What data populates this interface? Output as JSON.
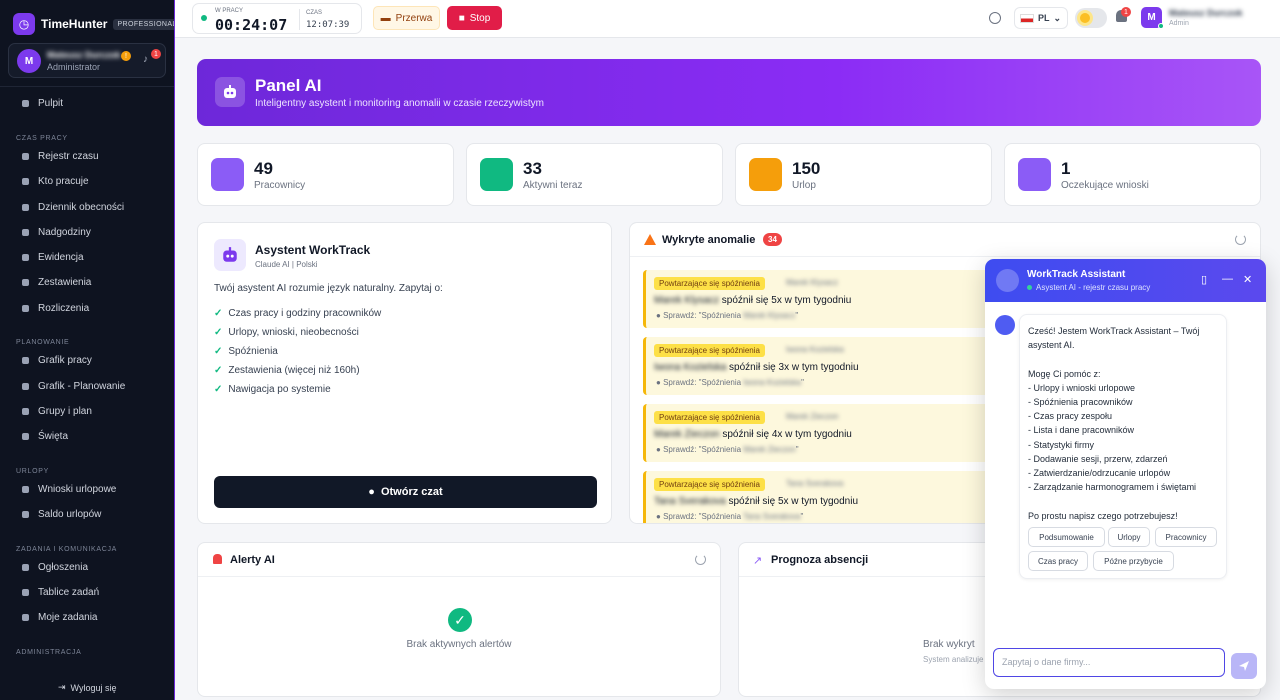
{
  "brand": {
    "name": "TimeHunter",
    "badge": "PROFESSIONAL"
  },
  "user": {
    "initial": "M",
    "name": "Mateusz Durczok",
    "role": "Administrator",
    "notif": "!",
    "bell_count": "1"
  },
  "sidebar": {
    "items": [
      {
        "label": "Pulpit",
        "icon": "dashboard-icon"
      },
      {
        "section": "CZAS PRACY"
      },
      {
        "label": "Rejestr czasu",
        "icon": "clock-icon"
      },
      {
        "label": "Kto pracuje",
        "icon": "users-icon"
      },
      {
        "label": "Dziennik obecności",
        "icon": "notebook-icon"
      },
      {
        "label": "Nadgodziny",
        "icon": "history-icon"
      },
      {
        "label": "Ewidencja",
        "icon": "list-icon"
      },
      {
        "label": "Zestawienia",
        "icon": "chart-icon"
      },
      {
        "label": "Rozliczenia",
        "icon": "invoice-icon"
      },
      {
        "section": "PLANOWANIE"
      },
      {
        "label": "Grafik pracy",
        "icon": "calendar-icon"
      },
      {
        "label": "Grafik - Planowanie",
        "icon": "calendar-plus-icon"
      },
      {
        "label": "Grupy i plan",
        "icon": "group-icon"
      },
      {
        "label": "Święta",
        "icon": "star-icon"
      },
      {
        "section": "URLOPY"
      },
      {
        "label": "Wnioski urlopowe",
        "icon": "document-icon"
      },
      {
        "label": "Saldo urlopów",
        "icon": "wallet-icon"
      },
      {
        "section": "ZADANIA I KOMUNIKACJA"
      },
      {
        "label": "Ogłoszenia",
        "icon": "megaphone-icon"
      },
      {
        "label": "Tablice zadań",
        "icon": "board-icon"
      },
      {
        "label": "Moje zadania",
        "icon": "task-icon"
      },
      {
        "section": "ADMINISTRACJA"
      }
    ],
    "logout": "Wyloguj się"
  },
  "topbar": {
    "status_label": "W PRACY",
    "work_time": "00:24:07",
    "clock_label": "CZAS",
    "clock": "12:07:39",
    "break_label": "Przerwa",
    "stop_label": "Stop",
    "lang": "PL",
    "bell_count": "1",
    "user_initial": "M",
    "user_name": "Mateusz Durczok",
    "user_role": "Admin"
  },
  "hero": {
    "title": "Panel AI",
    "subtitle": "Inteligentny asystent i monitoring anomalii w czasie rzeczywistym"
  },
  "stats": [
    {
      "value": "49",
      "label": "Pracownicy",
      "color": "#8b5cf6",
      "icon": "users-icon"
    },
    {
      "value": "33",
      "label": "Aktywni teraz",
      "color": "#10b981",
      "icon": "play-icon"
    },
    {
      "value": "150",
      "label": "Urlop",
      "color": "#f59e0b",
      "icon": "beach-icon"
    },
    {
      "value": "1",
      "label": "Oczekujące wnioski",
      "color": "#8b5cf6",
      "icon": "clock-icon"
    }
  ],
  "assistant": {
    "title": "Asystent WorkTrack",
    "subtitle": "Claude AI | Polski",
    "desc": "Twój asystent AI rozumie język naturalny. Zapytaj o:",
    "items": [
      "Czas pracy i godziny pracowników",
      "Urlopy, wnioski, nieobecności",
      "Spóźnienia",
      "Zestawienia (więcej niż 160h)",
      "Nawigacja po systemie"
    ],
    "button": "Otwórz czat"
  },
  "anomalies": {
    "title": "Wykryte anomalie",
    "count": "34",
    "items": [
      {
        "tag": "Powtarzające się spóźnienia",
        "person": "Marek Klysacz",
        "name": "Marek Klysacz",
        "text": "spóźnił się 5x w tym tygodniu",
        "check": "Sprawdź: \"Spóźnienia",
        "check_name": "Marek Klysacz",
        "check_end": "\""
      },
      {
        "tag": "Powtarzające się spóźnienia",
        "person": "Iwona Kozielska",
        "name": "Iwona Kozielska",
        "text": "spóźnił się 3x w tym tygodniu",
        "check": "Sprawdź: \"Spóźnienia",
        "check_name": "Iwona Kozielska",
        "check_end": "\""
      },
      {
        "tag": "Powtarzające się spóźnienia",
        "person": "Marek Zieczon",
        "name": "Marek Zieczon",
        "text": "spóźnił się 4x w tym tygodniu",
        "check": "Sprawdź: \"Spóźnienia",
        "check_name": "Marek Zieczon",
        "check_end": "\""
      },
      {
        "tag": "Powtarzające się spóźnienia",
        "person": "Tana Sverakova",
        "name": "Tana Sverakova",
        "text": "spóźnił się 5x w tym tygodniu",
        "check": "Sprawdź: \"Spóźnienia",
        "check_name": "Tana Sverakova",
        "check_end": "\""
      }
    ]
  },
  "alerts": {
    "title": "Alerty AI",
    "empty": "Brak aktywnych alertów"
  },
  "forecast": {
    "title": "Prognoza absencji",
    "text1": "Brak wykryt",
    "text2": "System analizuje"
  },
  "chat": {
    "title": "WorkTrack Assistant",
    "status": "Asystent AI - rejestr czasu pracy",
    "lines": [
      "Cześć! Jestem WorkTrack Assistant – Twój",
      "asystent AI.",
      "",
      "Mogę Ci pomóc z:",
      "- Urlopy i wnioski urlopowe",
      "- Spóźnienia pracowników",
      "- Czas pracy zespołu",
      "- Lista i dane pracowników",
      "- Statystyki firmy",
      "- Dodawanie sesji, przerw, zdarzeń",
      "- Zatwierdzanie/odrzucanie urlopów",
      "- Zarządzanie harmonogramem i świętami",
      "",
      "Po prostu napisz czego potrzebujesz!"
    ],
    "suggestions": [
      "Podsumowanie",
      "Urlopy",
      "Pracownicy",
      "Czas pracy",
      "Późne przybycie"
    ],
    "placeholder": "Zapytaj o dane firmy..."
  }
}
